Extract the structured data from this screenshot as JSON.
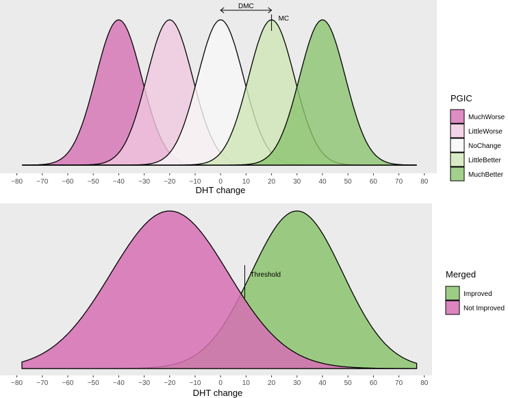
{
  "chart_data": [
    {
      "type": "area",
      "xlabel": "DHT change",
      "xlim": [
        -80,
        80
      ],
      "x_ticks": [
        -80,
        -70,
        -60,
        -50,
        -40,
        -30,
        -20,
        -10,
        0,
        10,
        20,
        30,
        40,
        50,
        60,
        70,
        80
      ],
      "x_range": [
        -78,
        77
      ],
      "grid": false,
      "legend": {
        "title": "PGIC",
        "placement": "right"
      },
      "series": [
        {
          "name": "MuchWorse",
          "mean": -40,
          "sd": 9,
          "color": "#d670b4"
        },
        {
          "name": "LittleWorse",
          "mean": -20,
          "sd": 9,
          "color": "#f0c8e0"
        },
        {
          "name": "NoChange",
          "mean": 0,
          "sd": 9,
          "color": "#f7f7f7"
        },
        {
          "name": "LittleBetter",
          "mean": 20,
          "sd": 9,
          "color": "#cfe6b5"
        },
        {
          "name": "MuchBetter",
          "mean": 40,
          "sd": 9,
          "color": "#8cc46f"
        }
      ],
      "annotations": {
        "dmc": {
          "label": "DMC",
          "from": 0,
          "to": 20
        },
        "mc": {
          "label": "MC",
          "x": 20
        }
      }
    },
    {
      "type": "area",
      "xlabel": "DHT change",
      "xlim": [
        -80,
        80
      ],
      "x_ticks": [
        -80,
        -70,
        -60,
        -50,
        -40,
        -30,
        -20,
        -10,
        0,
        10,
        20,
        30,
        40,
        50,
        60,
        70,
        80
      ],
      "x_range": [
        -78,
        77
      ],
      "grid": false,
      "legend": {
        "title": "Merged",
        "placement": "right"
      },
      "series": [
        {
          "name": "Improved",
          "mean": 30,
          "sd": 18,
          "color": "#8cc46f"
        },
        {
          "name": "Not Improved",
          "mean": -20,
          "sd": 23,
          "color": "#d670b4"
        }
      ],
      "annotations": {
        "threshold": {
          "label": "Threshold",
          "x": 9.5
        }
      }
    }
  ]
}
